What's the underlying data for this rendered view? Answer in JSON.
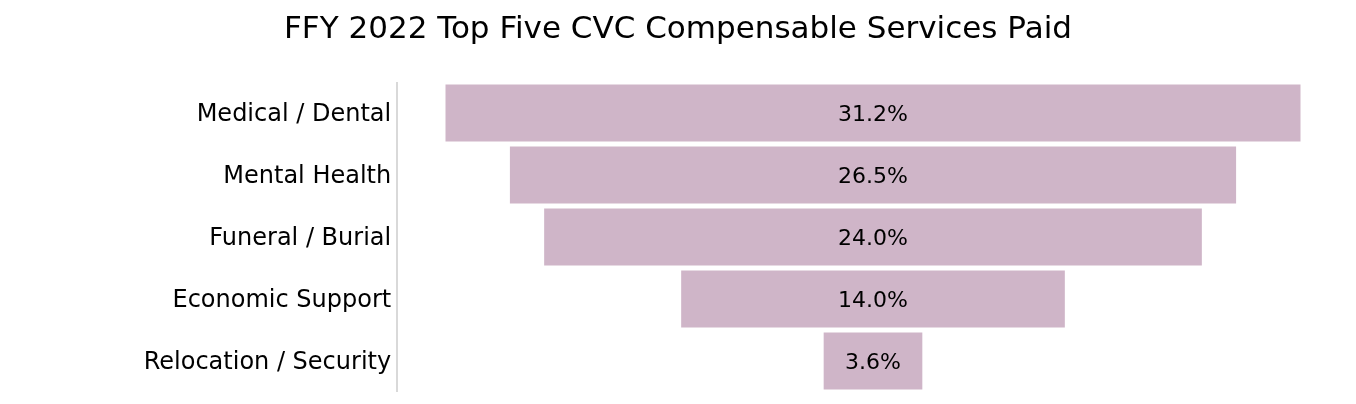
{
  "chart_data": {
    "type": "other",
    "title": "FFY 2022 Top Five CVC Compensable Services Paid",
    "categories": [
      "Medical / Dental",
      "Mental Health",
      "Funeral / Burial",
      "Economic Support",
      "Relocation / Security"
    ],
    "values": [
      31.2,
      26.5,
      24.0,
      14.0,
      3.6
    ],
    "value_labels": [
      "31.2%",
      "26.5%",
      "24.0%",
      "14.0%",
      "3.6%"
    ],
    "color": "#cfb5c8"
  }
}
